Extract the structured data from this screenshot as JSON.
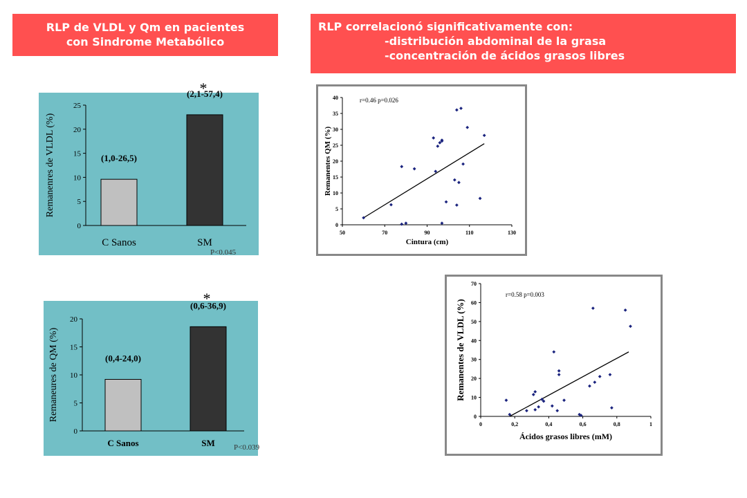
{
  "banners": {
    "left": [
      "RLP de VLDL y Qm en pacientes",
      "con Sindrome Metabólico"
    ],
    "right": [
      "RLP correlacionó significativamente con:",
      "-distribución abdominal de la grasa",
      "-concentración de ácidos grasos libres"
    ]
  },
  "colors": {
    "banner": "#ff5050",
    "panel": "#72bfc6",
    "bar_control": "#c0c0c0",
    "bar_sm": "#333333",
    "marker": "#1a237e"
  },
  "chart_data": [
    {
      "type": "bar",
      "ylabel": "Remanenres de VLDL (%)",
      "categories": [
        "C Sanos",
        "SM"
      ],
      "values": [
        9.6,
        23.0
      ],
      "annotations": [
        "(1,0-26,5)",
        "(2,1-57,4)"
      ],
      "significance": "*",
      "pvalue": "P<0.045",
      "ylim": [
        0,
        25
      ],
      "yticks": [
        "0",
        "5",
        "10",
        "15",
        "20",
        "25"
      ]
    },
    {
      "type": "bar",
      "ylabel": "Remaneures de QM (%)",
      "categories": [
        "C Sanos",
        "SM"
      ],
      "values": [
        9.2,
        18.6
      ],
      "annotations": [
        "(0,4-24,0)",
        "(0,6-36,9)"
      ],
      "significance": "*",
      "pvalue": "P<0.039",
      "ylim": [
        0,
        20
      ],
      "yticks": [
        "0",
        "5",
        "10",
        "15",
        "20"
      ]
    },
    {
      "type": "scatter",
      "annotation": "r=0.46 p=0.026",
      "xlabel": "Cintura (cm)",
      "ylabel": "Remanentes QM (%)",
      "xlim": [
        50,
        130
      ],
      "ylim": [
        0,
        40
      ],
      "xticks": [
        "50",
        "70",
        "90",
        "110",
        "130"
      ],
      "yticks": [
        "0",
        "5",
        "10",
        "15",
        "20",
        "25",
        "30",
        "35",
        "40"
      ],
      "points": [
        [
          60,
          2.2
        ],
        [
          73,
          6.3
        ],
        [
          78,
          0.2
        ],
        [
          78,
          18.3
        ],
        [
          80,
          0.5
        ],
        [
          84,
          17.6
        ],
        [
          93,
          27.3
        ],
        [
          94,
          16.8
        ],
        [
          95,
          24.7
        ],
        [
          96,
          25.8
        ],
        [
          97,
          26.6
        ],
        [
          97,
          26.3
        ],
        [
          97,
          0.5
        ],
        [
          99,
          7.2
        ],
        [
          103,
          14.1
        ],
        [
          104,
          6.2
        ],
        [
          104,
          36.1
        ],
        [
          105,
          13.3
        ],
        [
          106,
          36.6
        ],
        [
          107,
          19.1
        ],
        [
          109,
          30.6
        ],
        [
          115,
          8.3
        ],
        [
          117,
          28.1
        ]
      ],
      "trendline": [
        [
          60,
          2.2
        ],
        [
          117,
          25.5
        ]
      ]
    },
    {
      "type": "scatter",
      "annotation": "r=0.58 p=0.003",
      "xlabel": "Ácidos grasos libres (mM)",
      "ylabel": "Remanentes de VLDL (%)",
      "xlim": [
        0,
        1
      ],
      "ylim": [
        0,
        70
      ],
      "xticks": [
        "0",
        "0,2",
        "0,4",
        "0,6",
        "0,8",
        "1"
      ],
      "yticks": [
        "0",
        "10",
        "20",
        "30",
        "40",
        "50",
        "60",
        "70"
      ],
      "points": [
        [
          0.15,
          8.5
        ],
        [
          0.17,
          1
        ],
        [
          0.27,
          3
        ],
        [
          0.31,
          11.5
        ],
        [
          0.32,
          13
        ],
        [
          0.32,
          3.5
        ],
        [
          0.34,
          5
        ],
        [
          0.36,
          9
        ],
        [
          0.37,
          8
        ],
        [
          0.42,
          5.5
        ],
        [
          0.43,
          34
        ],
        [
          0.45,
          3
        ],
        [
          0.46,
          22
        ],
        [
          0.46,
          24
        ],
        [
          0.49,
          8.5
        ],
        [
          0.58,
          1
        ],
        [
          0.59,
          0.5
        ],
        [
          0.64,
          16
        ],
        [
          0.66,
          57
        ],
        [
          0.67,
          18
        ],
        [
          0.7,
          21
        ],
        [
          0.76,
          22
        ],
        [
          0.77,
          4.5
        ],
        [
          0.85,
          56
        ],
        [
          0.88,
          47.5
        ]
      ],
      "trendline": [
        [
          0.17,
          0
        ],
        [
          0.87,
          34
        ]
      ]
    }
  ]
}
